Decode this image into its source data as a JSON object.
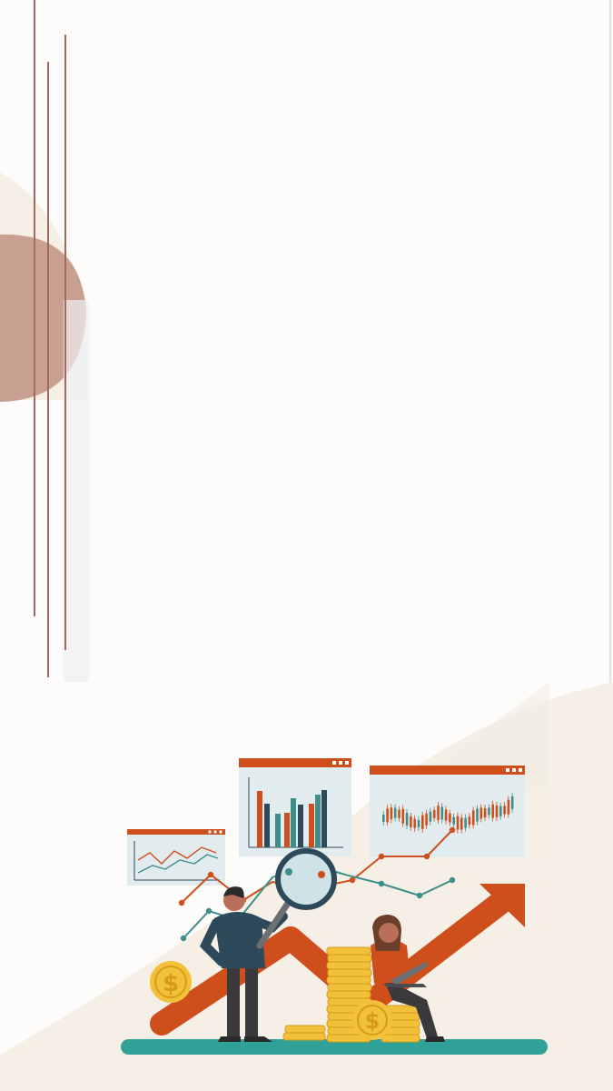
{
  "palette": {
    "background": "#fdfcfb",
    "cream": "#f6efe6",
    "terracotta": "#c8a091",
    "rule_line": "#a06a5c",
    "orange": "#cf4f1c",
    "teal": "#3e8f8c",
    "navy": "#2e4a5a",
    "gold": "#f2c13a",
    "panel": "#e2ecef",
    "ground": "#2fa197"
  },
  "icons": {
    "coin_symbol": "$",
    "magnifier": "magnifier-icon",
    "laptop": "laptop-icon"
  }
}
